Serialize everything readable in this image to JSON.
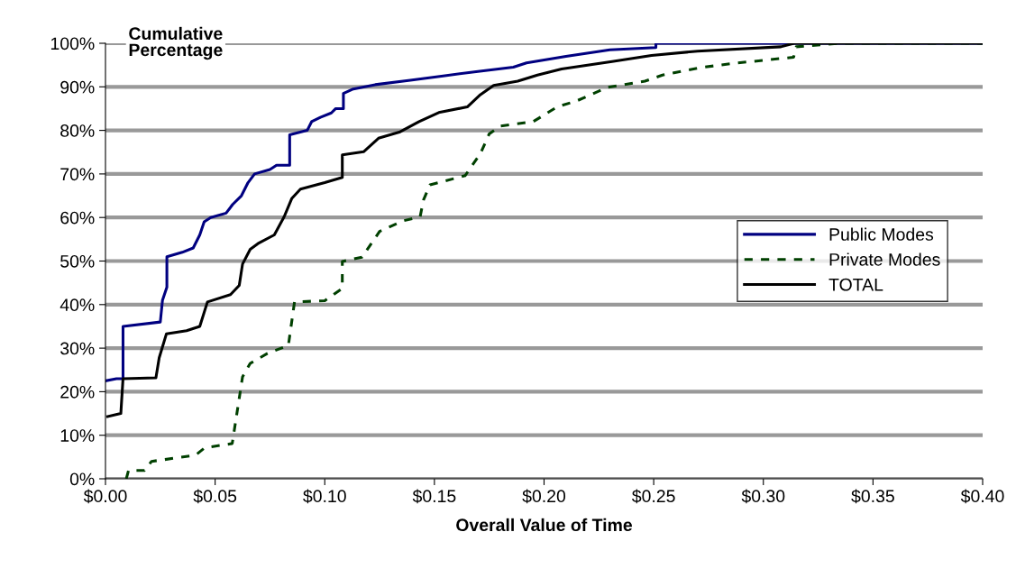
{
  "chart_data": {
    "type": "line",
    "xlabel": "Overall Value of Time",
    "ylabel": "Cumulative\nPercentage",
    "xlim": [
      0,
      0.4
    ],
    "ylim": [
      0,
      100
    ],
    "xticks": [
      {
        "value": 0,
        "label": "$0.00"
      },
      {
        "value": 0.05,
        "label": "$0.05"
      },
      {
        "value": 0.1,
        "label": "$0.10"
      },
      {
        "value": 0.15,
        "label": "$0.15"
      },
      {
        "value": 0.2,
        "label": "$0.20"
      },
      {
        "value": 0.25,
        "label": "$0.25"
      },
      {
        "value": 0.3,
        "label": "$0.30"
      },
      {
        "value": 0.35,
        "label": "$0.35"
      },
      {
        "value": 0.4,
        "label": "$0.40"
      }
    ],
    "yticks": [
      {
        "value": 0,
        "label": "0%"
      },
      {
        "value": 10,
        "label": "10%"
      },
      {
        "value": 20,
        "label": "20%"
      },
      {
        "value": 30,
        "label": "30%"
      },
      {
        "value": 40,
        "label": "40%"
      },
      {
        "value": 50,
        "label": "50%"
      },
      {
        "value": 60,
        "label": "60%"
      },
      {
        "value": 70,
        "label": "70%"
      },
      {
        "value": 80,
        "label": "80%"
      },
      {
        "value": 90,
        "label": "90%"
      },
      {
        "value": 100,
        "label": "100%"
      }
    ],
    "grid": "y",
    "legend": "right",
    "marker": "none",
    "series": [
      {
        "name": "Public Modes",
        "color": "#000080",
        "line_style": "solid",
        "x": [
          0,
          0.005,
          0.008,
          0.008,
          0.025,
          0.026,
          0.028,
          0.028,
          0.035,
          0.04,
          0.043,
          0.045,
          0.048,
          0.055,
          0.058,
          0.062,
          0.065,
          0.068,
          0.075,
          0.078,
          0.084,
          0.084,
          0.092,
          0.094,
          0.098,
          0.103,
          0.105,
          0.1085,
          0.1085,
          0.113,
          0.123,
          0.139,
          0.154,
          0.169,
          0.186,
          0.192,
          0.21,
          0.23,
          0.251,
          0.251,
          0.4
        ],
        "values": [
          22.5,
          23,
          23,
          35,
          36,
          41,
          44,
          51,
          52,
          53,
          56,
          59,
          60,
          61,
          63,
          65,
          68,
          70,
          71,
          72,
          72,
          79,
          80,
          82,
          83,
          84,
          85,
          85,
          88.5,
          89.5,
          90.5,
          91.5,
          92.5,
          93.5,
          94.5,
          95.5,
          97,
          98.5,
          99,
          100,
          100
        ]
      },
      {
        "name": "Private Modes",
        "color": "#004000",
        "line_style": "dashed",
        "x": [
          0.0095,
          0.0105,
          0.0178,
          0.021,
          0.041,
          0.0452,
          0.0578,
          0.0625,
          0.066,
          0.0739,
          0.0834,
          0.0862,
          0.1,
          0.108,
          0.108,
          0.117,
          0.125,
          0.1355,
          0.1435,
          0.145,
          0.148,
          0.164,
          0.171,
          0.175,
          0.18,
          0.195,
          0.206,
          0.215,
          0.229,
          0.246,
          0.254,
          0.271,
          0.2866,
          0.3138,
          0.315,
          0.335,
          0.4
        ],
        "values": [
          0,
          1.9,
          1.9,
          4,
          5.4,
          7.1,
          8.1,
          23.4,
          26.5,
          28.8,
          30.6,
          40.6,
          40.9,
          43.7,
          49.9,
          50.9,
          56.8,
          59.2,
          60.2,
          64,
          67.5,
          69.6,
          74.7,
          79.2,
          81,
          82,
          85.4,
          86.8,
          89.9,
          91.3,
          92.7,
          94.4,
          95.4,
          96.8,
          99.2,
          100,
          100
        ]
      },
      {
        "name": "TOTAL",
        "color": "#000000",
        "line_style": "solid",
        "x": [
          0.001,
          0.007,
          0.008,
          0.023,
          0.0245,
          0.0278,
          0.037,
          0.043,
          0.0465,
          0.057,
          0.061,
          0.0625,
          0.066,
          0.0695,
          0.077,
          0.0815,
          0.085,
          0.0889,
          0.1,
          0.108,
          0.108,
          0.1177,
          0.1245,
          0.134,
          0.143,
          0.152,
          0.165,
          0.171,
          0.177,
          0.188,
          0.197,
          0.208,
          0.231,
          0.249,
          0.27,
          0.308,
          0.314,
          0.4
        ],
        "values": [
          14.3,
          15,
          23,
          23.2,
          27.8,
          33.3,
          34,
          35,
          40.6,
          42.3,
          44.4,
          49.3,
          52.7,
          54,
          56,
          60.2,
          64.4,
          66.5,
          68,
          69.2,
          74.4,
          75.1,
          78.2,
          79.6,
          82,
          84.1,
          85.4,
          88.2,
          90.3,
          91.3,
          92.7,
          94.1,
          95.8,
          97.2,
          98.2,
          99.2,
          100,
          100
        ]
      }
    ]
  }
}
